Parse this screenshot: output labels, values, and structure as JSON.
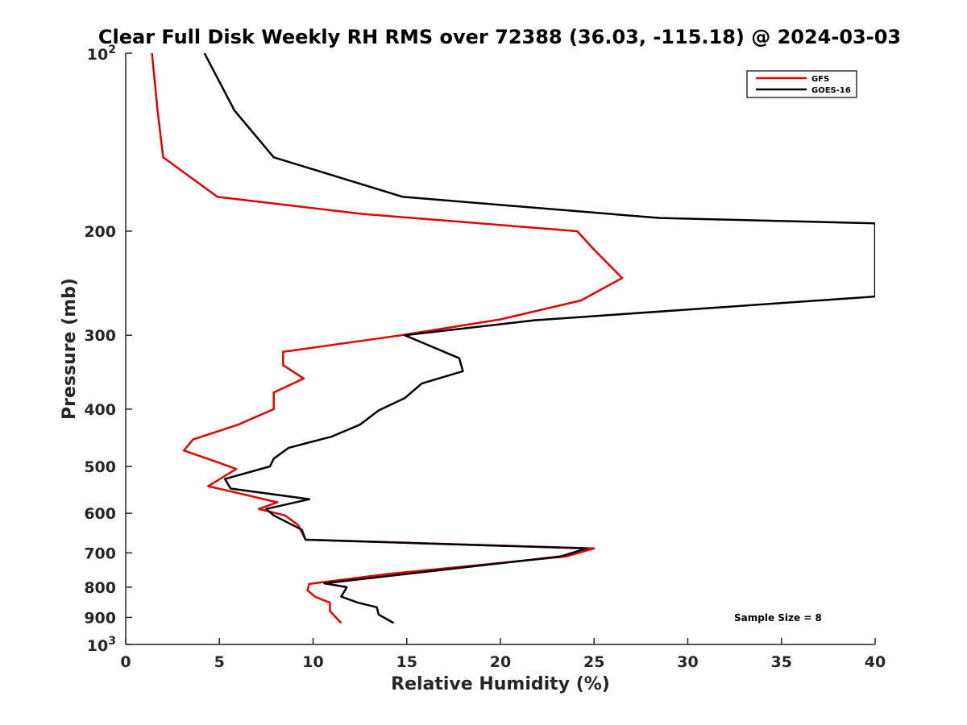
{
  "chart_data": {
    "type": "line",
    "title": "Clear Full Disk Weekly RH RMS over 72388 (36.03, -115.18) @ 2024-03-03",
    "xlabel": "Relative Humidity (%)",
    "ylabel": "Pressure (mb)",
    "xlim": [
      0,
      40
    ],
    "ylim": [
      100,
      1000
    ],
    "yscale": "log",
    "y_reversed": true,
    "x_ticks": [
      "0",
      "5",
      "10",
      "15",
      "20",
      "25",
      "30",
      "35",
      "40"
    ],
    "y_ticks": [
      {
        "value": 100,
        "base": "10",
        "exp": "2"
      },
      {
        "value": 200,
        "label": "200"
      },
      {
        "value": 300,
        "label": "300"
      },
      {
        "value": 400,
        "label": "400"
      },
      {
        "value": 500,
        "label": "500"
      },
      {
        "value": 600,
        "label": "600"
      },
      {
        "value": 700,
        "label": "700"
      },
      {
        "value": 800,
        "label": "800"
      },
      {
        "value": 900,
        "label": "900"
      },
      {
        "value": 1000,
        "base": "10",
        "exp": "3"
      }
    ],
    "grid": false,
    "legend_position": "top-right",
    "annotation": "Sample Size = 8",
    "series": [
      {
        "name": "GFS",
        "color": "#e00000",
        "points": [
          [
            1.4,
            100
          ],
          [
            1.7,
            125
          ],
          [
            2.0,
            150
          ],
          [
            4.9,
            175
          ],
          [
            12.6,
            187
          ],
          [
            24.1,
            200
          ],
          [
            25.0,
            215
          ],
          [
            26.5,
            240
          ],
          [
            24.3,
            262
          ],
          [
            20.0,
            282
          ],
          [
            14.7,
            300
          ],
          [
            8.4,
            320
          ],
          [
            8.4,
            337
          ],
          [
            9.5,
            355
          ],
          [
            7.9,
            375
          ],
          [
            7.9,
            400
          ],
          [
            6.0,
            425
          ],
          [
            3.6,
            450
          ],
          [
            3.1,
            470
          ],
          [
            4.6,
            488
          ],
          [
            5.9,
            505
          ],
          [
            4.4,
            540
          ],
          [
            5.3,
            548
          ],
          [
            8.1,
            575
          ],
          [
            7.1,
            590
          ],
          [
            8.5,
            605
          ],
          [
            9.2,
            628
          ],
          [
            9.6,
            665
          ],
          [
            25.0,
            688
          ],
          [
            23.5,
            710
          ],
          [
            14.0,
            760
          ],
          [
            9.8,
            790
          ],
          [
            9.7,
            810
          ],
          [
            10.1,
            830
          ],
          [
            10.9,
            850
          ],
          [
            10.9,
            878
          ],
          [
            11.5,
            920
          ]
        ]
      },
      {
        "name": "GOES-16",
        "color": "#000000",
        "points": [
          [
            4.2,
            100
          ],
          [
            5.8,
            125
          ],
          [
            7.9,
            150
          ],
          [
            14.8,
            175
          ],
          [
            28.5,
            190
          ],
          [
            40.0,
            194
          ],
          [
            40.0,
            258
          ],
          [
            21.8,
            283
          ],
          [
            14.9,
            300
          ],
          [
            17.8,
            328
          ],
          [
            18.0,
            345
          ],
          [
            15.8,
            362
          ],
          [
            14.9,
            383
          ],
          [
            13.5,
            402
          ],
          [
            12.5,
            425
          ],
          [
            11.0,
            445
          ],
          [
            8.7,
            465
          ],
          [
            7.9,
            485
          ],
          [
            7.7,
            500
          ],
          [
            5.3,
            525
          ],
          [
            5.6,
            545
          ],
          [
            9.8,
            568
          ],
          [
            7.5,
            590
          ],
          [
            7.9,
            605
          ],
          [
            8.9,
            628
          ],
          [
            9.4,
            640
          ],
          [
            9.6,
            665
          ],
          [
            24.6,
            688
          ],
          [
            23.2,
            710
          ],
          [
            10.6,
            788
          ],
          [
            11.8,
            800
          ],
          [
            11.5,
            830
          ],
          [
            12.4,
            850
          ],
          [
            13.4,
            865
          ],
          [
            13.5,
            890
          ],
          [
            14.3,
            920
          ]
        ]
      }
    ]
  }
}
